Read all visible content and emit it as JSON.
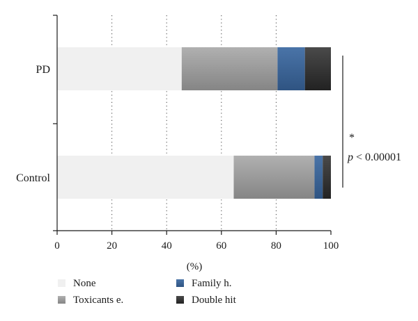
{
  "chart_data": {
    "type": "bar",
    "orientation": "horizontal",
    "stacked": true,
    "categories": [
      "PD",
      "Control"
    ],
    "series": [
      {
        "name": "None",
        "values": [
          45.5,
          64.5
        ],
        "color": "#f0f0f0",
        "fill": "flat"
      },
      {
        "name": "Toxicants e.",
        "values": [
          35,
          29.5
        ],
        "color": "#9a9a9a",
        "fill": "gradient"
      },
      {
        "name": "Family h.",
        "values": [
          10,
          3
        ],
        "color": "#3c6496",
        "fill": "gradient"
      },
      {
        "name": "Double hit",
        "values": [
          9.5,
          3
        ],
        "color": "#333333",
        "fill": "gradient"
      }
    ],
    "xlim": [
      0,
      100
    ],
    "xticks": [
      0,
      20,
      40,
      60,
      80,
      100
    ],
    "xlabel": "(%)",
    "grid": "vertical-dotted",
    "legend_position": "bottom",
    "annotation": {
      "star": "*",
      "p_italic": "p",
      "p_rest": " < 0.00001"
    }
  }
}
